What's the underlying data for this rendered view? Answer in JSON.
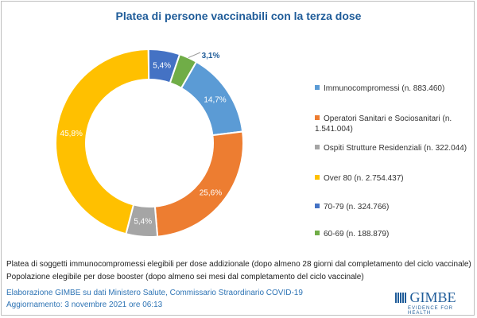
{
  "chart_data": {
    "type": "pie",
    "title": "Platea di persone vaccinabili con la terza dose",
    "start_angle_deg": 30,
    "slices": [
      {
        "label": "Immunocompromessi (n. 883.460)",
        "value": 14.7,
        "data_label": "14,7%",
        "color": "#5b9bd5"
      },
      {
        "label": "Operatori Sanitari e Sociosanitari (n. 1.541.004)",
        "value": 25.6,
        "data_label": "25,6%",
        "color": "#ed7d31"
      },
      {
        "label": "Ospiti Strutture Residenziali (n. 322.044)",
        "value": 5.4,
        "data_label": "5,4%",
        "color": "#a5a5a5"
      },
      {
        "label": "Over 80 (n. 2.754.437)",
        "value": 45.8,
        "data_label": "45,8%",
        "color": "#ffc000"
      },
      {
        "label": "70-79 (n. 324.766)",
        "value": 5.4,
        "data_label": "5,4%",
        "color": "#4472c4"
      },
      {
        "label": "60-69 (n. 188.879)",
        "value": 3.1,
        "data_label": "3,1%",
        "color": "#70ad47"
      }
    ]
  },
  "notes": [
    "Platea di soggetti immunocompromessi  elegibili per dose addizionale (dopo almeno 28 giorni dal completamento del ciclo vaccinale)",
    "Popolazione elegibile per dose booster (dopo almeno sei mesi dal completamento del ciclo vaccinale)"
  ],
  "source": "Elaborazione GIMBE su dati Ministero Salute, Commissario Straordinario COVID-19",
  "updated": "Aggiornamento:  3 novembre 2021 ore 06:13",
  "logo": {
    "name": "GIMBE",
    "tagline": "EVIDENCE FOR HEALTH"
  }
}
